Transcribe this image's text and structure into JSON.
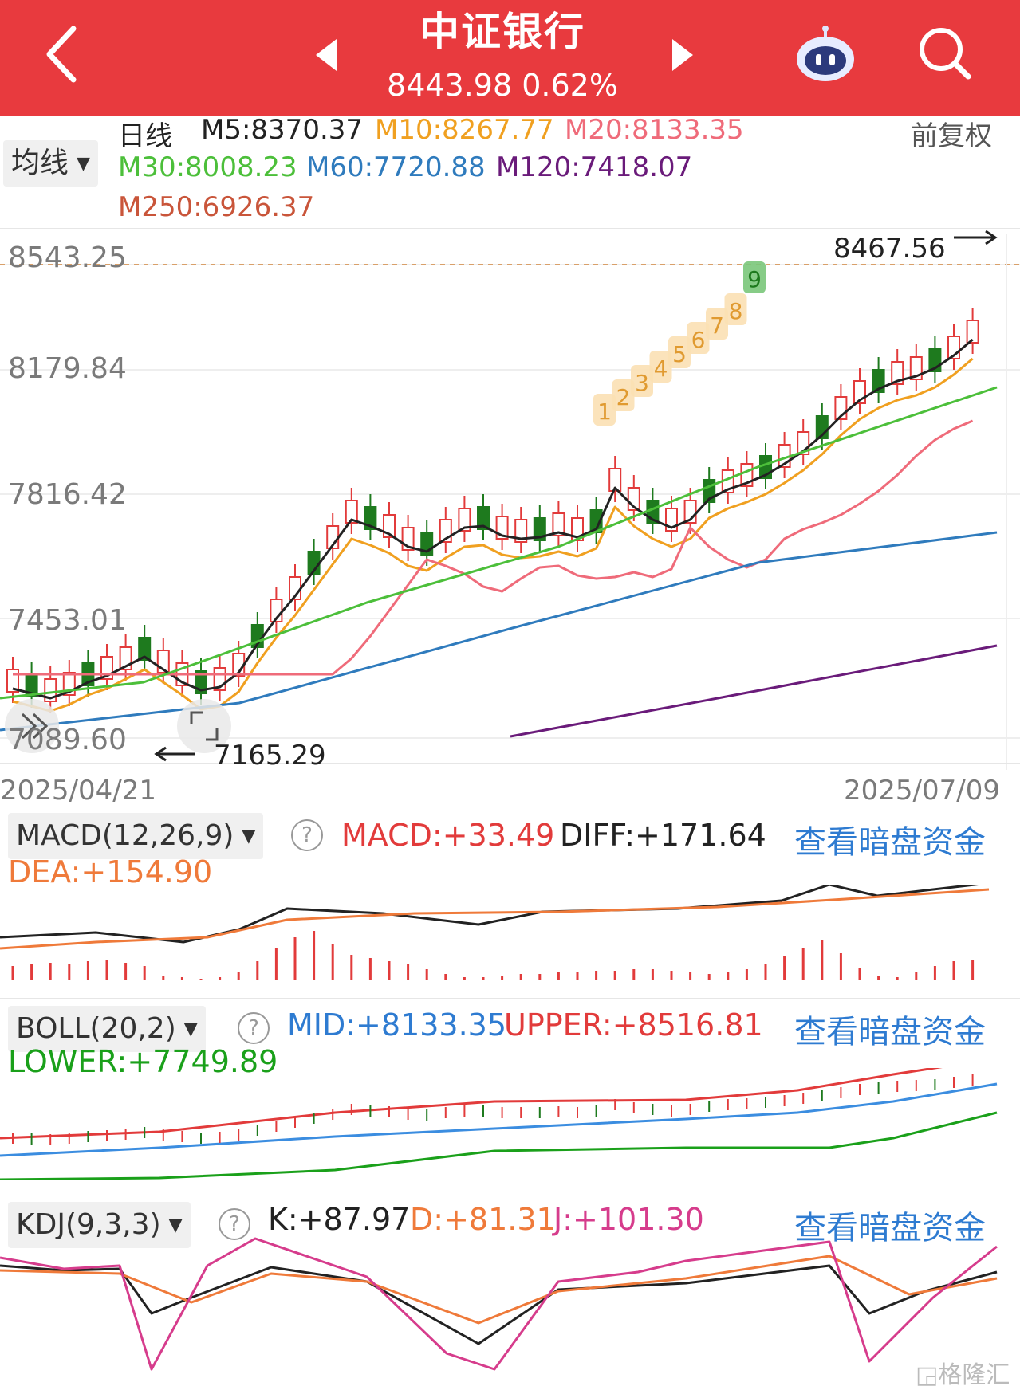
{
  "header": {
    "title": "中证银行",
    "price": "8443.98",
    "change_pct": "0.62%",
    "bg_color": "#e83a3e"
  },
  "icons": {
    "back": "chevron-left-icon",
    "prev": "triangle-left-icon",
    "next": "triangle-right-icon",
    "assistant": "robot-icon",
    "search": "search-icon"
  },
  "ma": {
    "period": "日线",
    "adjust": "前复权",
    "selector": "均线",
    "items": [
      {
        "label": "M5:8370.37",
        "color": "#222222"
      },
      {
        "label": "M10:8267.77",
        "color": "#f0a020"
      },
      {
        "label": "M20:8133.35",
        "color": "#ef6b7a"
      },
      {
        "label": "M30:8008.23",
        "color": "#4cbf3a"
      },
      {
        "label": "M60:7720.88",
        "color": "#2f7bbd"
      },
      {
        "label": "M120:7418.07",
        "color": "#6a1b7a"
      },
      {
        "label": "M250:6926.37",
        "color": "#c9553a"
      }
    ]
  },
  "kline": {
    "y_labels": [
      "8543.25",
      "8179.84",
      "7816.42",
      "7453.01",
      "7089.60"
    ],
    "high_marker": "8467.56",
    "low_marker": "7165.29",
    "start_date": "2025/04/21",
    "end_date": "2025/07/09",
    "countdown": [
      "1",
      "2",
      "3",
      "4",
      "5",
      "6",
      "7",
      "8",
      "9"
    ]
  },
  "macd": {
    "selector": "MACD(12,26,9)",
    "macd": "MACD:+33.49",
    "diff": "DIFF:+171.64",
    "dea": "DEA:+154.90",
    "link": "查看暗盘资金"
  },
  "boll": {
    "selector": "BOLL(20,2)",
    "mid": "MID:+8133.35",
    "upper": "UPPER:+8516.81",
    "lower": "LOWER:+7749.89",
    "link": "查看暗盘资金"
  },
  "kdj": {
    "selector": "KDJ(9,3,3)",
    "k": "K:+87.97",
    "d": "D:+81.31",
    "j": "J:+101.30",
    "link": "查看暗盘资金"
  },
  "watermark": "格隆汇"
}
